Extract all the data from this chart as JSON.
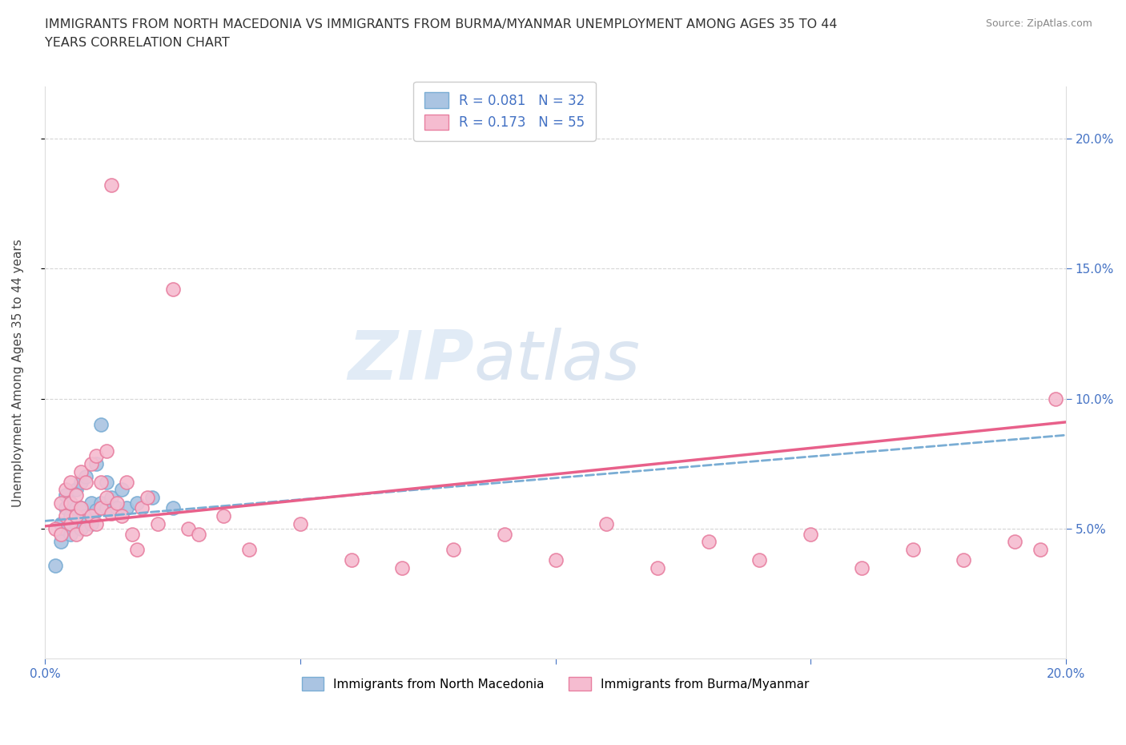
{
  "title_line1": "IMMIGRANTS FROM NORTH MACEDONIA VS IMMIGRANTS FROM BURMA/MYANMAR UNEMPLOYMENT AMONG AGES 35 TO 44",
  "title_line2": "YEARS CORRELATION CHART",
  "source_text": "Source: ZipAtlas.com",
  "ylabel": "Unemployment Among Ages 35 to 44 years",
  "xlim": [
    0.0,
    0.2
  ],
  "ylim": [
    0.0,
    0.22
  ],
  "series1_color": "#aac4e2",
  "series1_edge": "#7aadd4",
  "series2_color": "#f5bcd0",
  "series2_edge": "#e87fa0",
  "trendline1_color": "#7aadd4",
  "trendline2_color": "#e8608a",
  "R1": 0.081,
  "N1": 32,
  "R2": 0.173,
  "N2": 55,
  "watermark_zip": "ZIP",
  "watermark_atlas": "atlas",
  "legend_label1": "Immigrants from North Macedonia",
  "legend_label2": "Immigrants from Burma/Myanmar",
  "series1_x": [
    0.002,
    0.003,
    0.003,
    0.004,
    0.004,
    0.004,
    0.005,
    0.005,
    0.005,
    0.006,
    0.006,
    0.006,
    0.007,
    0.007,
    0.007,
    0.008,
    0.008,
    0.009,
    0.009,
    0.01,
    0.01,
    0.011,
    0.011,
    0.012,
    0.012,
    0.013,
    0.014,
    0.015,
    0.016,
    0.018,
    0.021,
    0.025
  ],
  "series1_y": [
    0.036,
    0.045,
    0.052,
    0.05,
    0.058,
    0.063,
    0.048,
    0.055,
    0.06,
    0.052,
    0.058,
    0.065,
    0.05,
    0.058,
    0.068,
    0.055,
    0.07,
    0.052,
    0.06,
    0.057,
    0.075,
    0.06,
    0.09,
    0.058,
    0.068,
    0.062,
    0.058,
    0.065,
    0.058,
    0.06,
    0.062,
    0.058
  ],
  "series2_x": [
    0.002,
    0.003,
    0.003,
    0.004,
    0.004,
    0.005,
    0.005,
    0.005,
    0.006,
    0.006,
    0.006,
    0.007,
    0.007,
    0.008,
    0.008,
    0.009,
    0.009,
    0.01,
    0.01,
    0.011,
    0.011,
    0.012,
    0.012,
    0.013,
    0.013,
    0.014,
    0.015,
    0.016,
    0.017,
    0.018,
    0.019,
    0.02,
    0.022,
    0.025,
    0.028,
    0.03,
    0.035,
    0.04,
    0.05,
    0.06,
    0.07,
    0.08,
    0.09,
    0.1,
    0.11,
    0.12,
    0.13,
    0.14,
    0.15,
    0.16,
    0.17,
    0.18,
    0.19,
    0.195,
    0.198
  ],
  "series2_y": [
    0.05,
    0.06,
    0.048,
    0.055,
    0.065,
    0.052,
    0.06,
    0.068,
    0.055,
    0.063,
    0.048,
    0.058,
    0.072,
    0.05,
    0.068,
    0.055,
    0.075,
    0.052,
    0.078,
    0.058,
    0.068,
    0.062,
    0.08,
    0.056,
    0.182,
    0.06,
    0.055,
    0.068,
    0.048,
    0.042,
    0.058,
    0.062,
    0.052,
    0.142,
    0.05,
    0.048,
    0.055,
    0.042,
    0.052,
    0.038,
    0.035,
    0.042,
    0.048,
    0.038,
    0.052,
    0.035,
    0.045,
    0.038,
    0.048,
    0.035,
    0.042,
    0.038,
    0.045,
    0.042,
    0.1
  ],
  "trendline1_x0": 0.0,
  "trendline1_y0": 0.053,
  "trendline1_x1": 0.2,
  "trendline1_y1": 0.086,
  "trendline2_x0": 0.0,
  "trendline2_y0": 0.051,
  "trendline2_x1": 0.2,
  "trendline2_y1": 0.091
}
